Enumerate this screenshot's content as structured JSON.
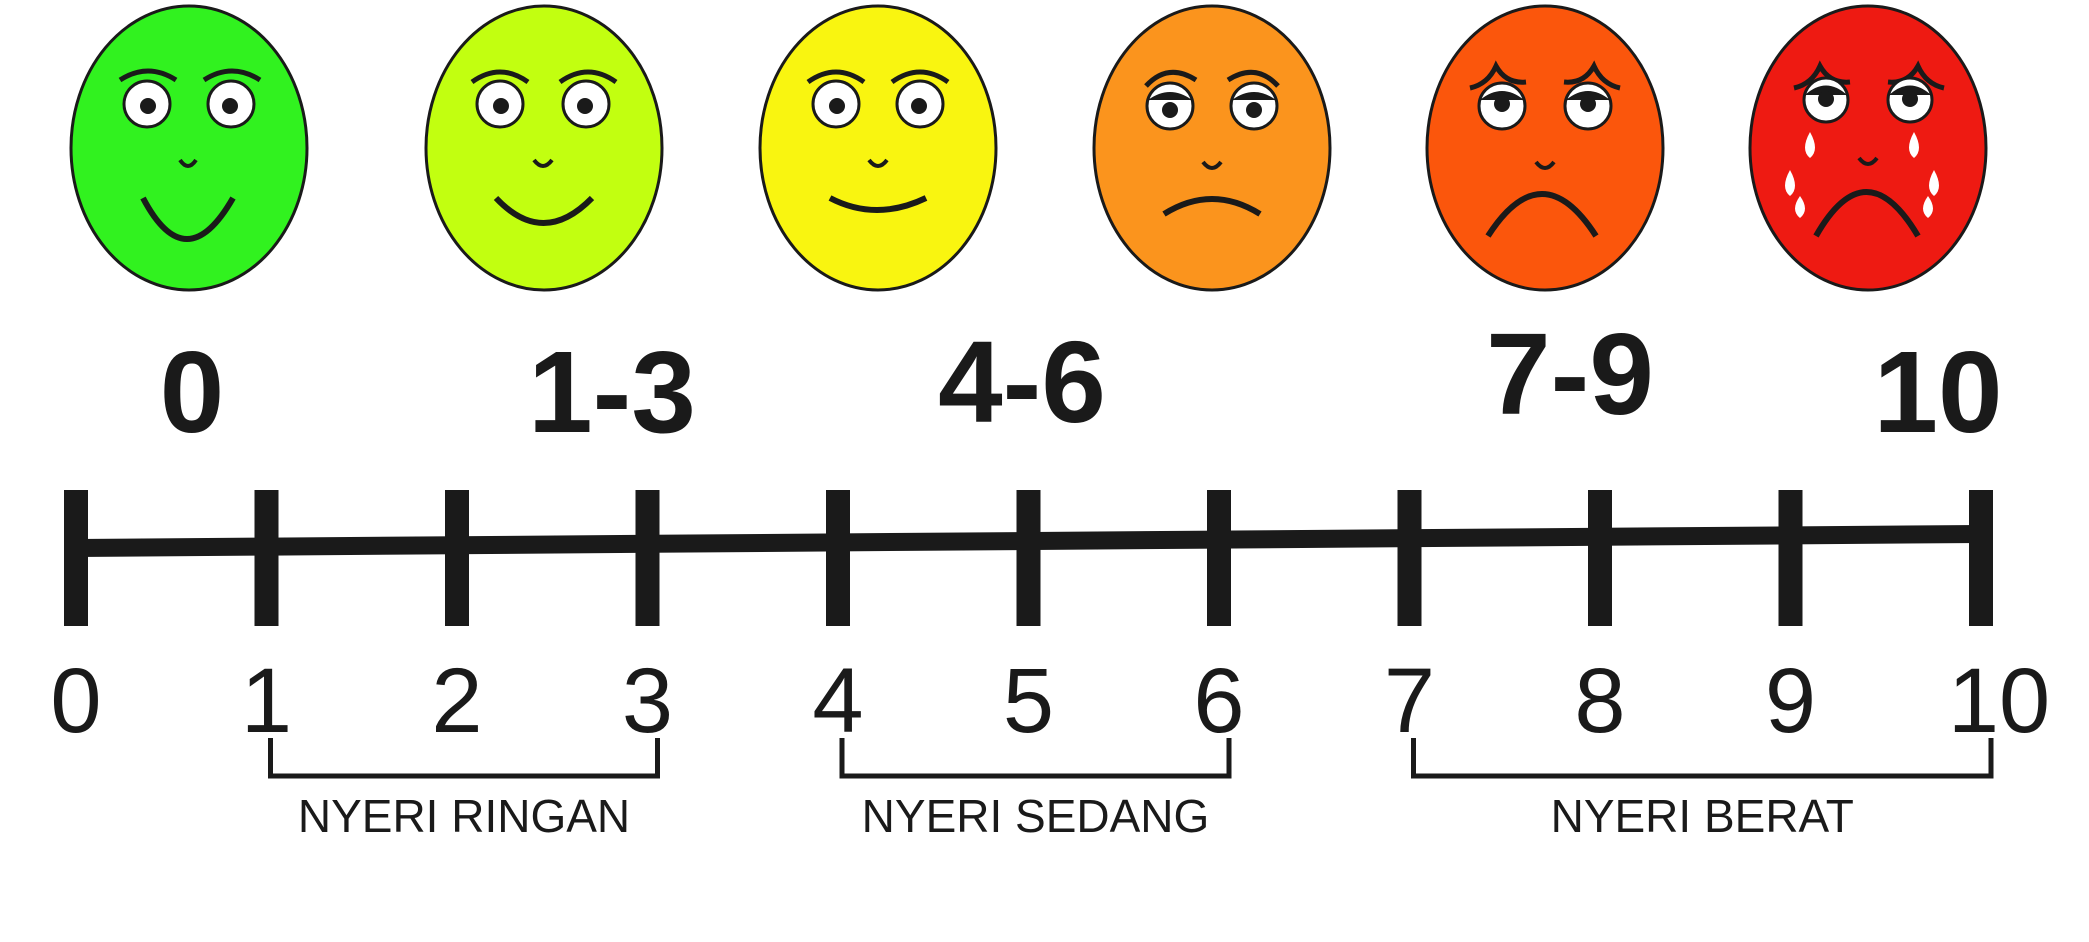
{
  "faces": [
    {
      "label": "0",
      "color": "#31f21f"
    },
    {
      "label": "1-3",
      "color": "#c2ff10"
    },
    {
      "label": "4-6",
      "color": "#f9f510"
    },
    {
      "label": "7-9",
      "color": "#fb941d"
    },
    {
      "label": "7-9",
      "color": "#fb560c"
    },
    {
      "label": "10",
      "color": "#ee1a12"
    }
  ],
  "ranges": {
    "r0": "0",
    "r1": "1-3",
    "r2": "4-6",
    "r3": "7-9",
    "r4": "10"
  },
  "scale": {
    "min": 0,
    "max": 10,
    "ticks": [
      "0",
      "1",
      "2",
      "3",
      "4",
      "5",
      "6",
      "7",
      "8",
      "9",
      "10"
    ]
  },
  "categories": [
    {
      "label": "NYERI RINGAN",
      "from": 1,
      "to": 3
    },
    {
      "label": "NYERI SEDANG",
      "from": 4,
      "to": 6
    },
    {
      "label": "NYERI BERAT",
      "from": 7,
      "to": 10
    }
  ],
  "colors": {
    "ink": "#1a1a1a",
    "tear": "#ffffff"
  }
}
